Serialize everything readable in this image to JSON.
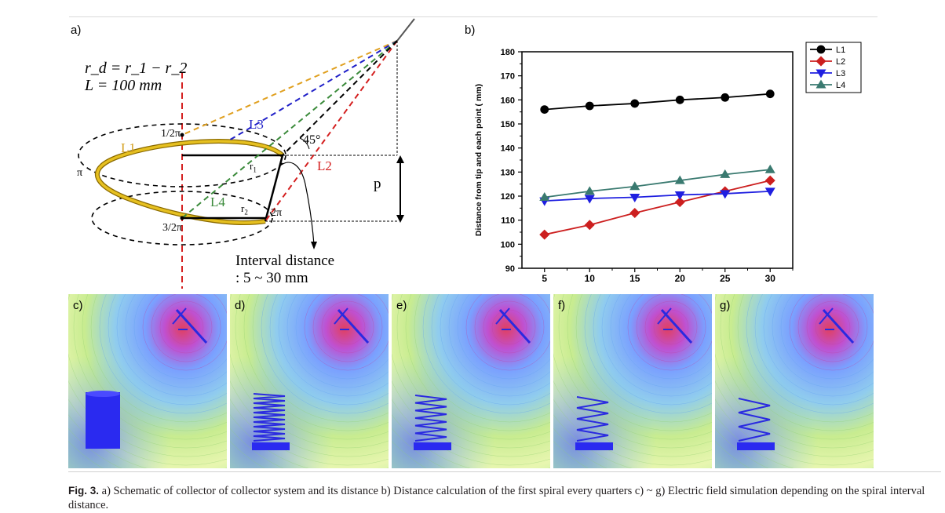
{
  "figure": {
    "panel_a": {
      "label": "a)",
      "eq1": "r_d = r_1 − r_2",
      "eq2": "L = 100 mm",
      "lines": {
        "L1": "L1",
        "L2": "L2",
        "L3": "L3",
        "L4": "L4"
      },
      "angle_half_pi": "1/2π",
      "angle_pi": "π",
      "angle_three_half_pi": "3/2π",
      "angle_two_pi": "2π",
      "r1": "r",
      "r1_sub": "1",
      "r2": "r",
      "r2_sub": "2",
      "angle_45": "45°",
      "p": "p",
      "interval_title": "Interval distance",
      "interval_range": ": 5 ~ 30 mm",
      "colors": {
        "L1": "#d4a020",
        "L2": "#d42020",
        "L3": "#2020c8",
        "L4": "#3a8a3a",
        "spiral": "#e0b000"
      }
    },
    "panel_b": {
      "label": "b)"
    },
    "sim_panels": [
      {
        "label": "c)"
      },
      {
        "label": "d)"
      },
      {
        "label": "e)"
      },
      {
        "label": "f)"
      },
      {
        "label": "g)"
      }
    ]
  },
  "chart_data": {
    "type": "line",
    "x": [
      5,
      10,
      15,
      20,
      25,
      30
    ],
    "xticks": [
      "5",
      "10",
      "15",
      "20",
      "25",
      "30"
    ],
    "ylabel": "Distance from tip and each point ( mm)",
    "xlabel": "",
    "ylim": [
      90,
      180
    ],
    "yticks": [
      90,
      100,
      110,
      120,
      130,
      140,
      150,
      160,
      170,
      180
    ],
    "legend_position": "top-right",
    "grid": false,
    "series": [
      {
        "name": "L1",
        "values": [
          156,
          157.5,
          158.5,
          160,
          161,
          162.5
        ],
        "color": "#000000",
        "marker": "circle"
      },
      {
        "name": "L2",
        "values": [
          104,
          108,
          113,
          117.5,
          122,
          126.5
        ],
        "color": "#cc1f1f",
        "marker": "diamond"
      },
      {
        "name": "L3",
        "values": [
          118,
          119,
          119.5,
          120.5,
          121,
          122
        ],
        "color": "#1f1fe0",
        "marker": "triangle-down"
      },
      {
        "name": "L4",
        "values": [
          119.5,
          122,
          124,
          126.5,
          129,
          131
        ],
        "color": "#3a7a70",
        "marker": "triangle-up"
      }
    ]
  },
  "caption": {
    "label": "Fig. 3.",
    "text": " a) Schematic of collector of collector system and its distance b) Distance calculation of the first spiral every quarters c) ~ g) Electric field simulation depending on the spiral interval distance."
  }
}
